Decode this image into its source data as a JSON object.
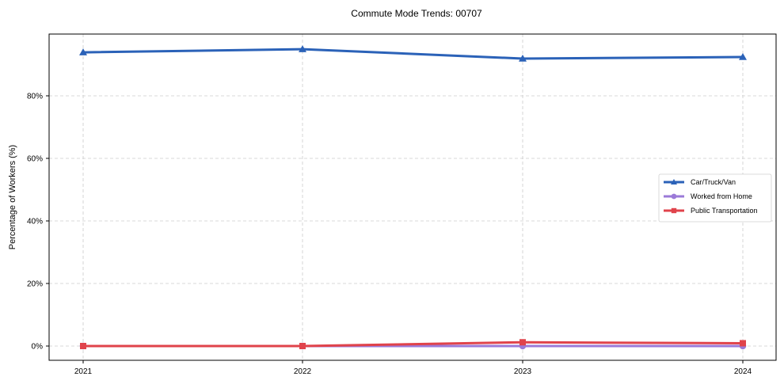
{
  "chart_data": {
    "type": "line",
    "title": "Commute Mode Trends: 00707",
    "xlabel": "",
    "ylabel": "Percentage of Workers (%)",
    "x": [
      "2021",
      "2022",
      "2023",
      "2024"
    ],
    "ylim": [
      -4.5,
      99.5
    ],
    "yticks": [
      0,
      20,
      40,
      60,
      80
    ],
    "ytick_labels": [
      "0%",
      "20%",
      "40%",
      "60%",
      "80%"
    ],
    "grid": true,
    "legend_position": "center right",
    "series": [
      {
        "name": "Car/Truck/Van",
        "color": "#2b62b8",
        "marker": "triangle",
        "values": [
          93.9,
          94.9,
          91.9,
          92.4
        ]
      },
      {
        "name": "Worked from Home",
        "color": "#9b7ad8",
        "marker": "circle",
        "values": [
          0.0,
          0.0,
          0.0,
          0.0
        ]
      },
      {
        "name": "Public Transportation",
        "color": "#e0434b",
        "marker": "square",
        "values": [
          0.0,
          0.0,
          1.2,
          0.9
        ]
      }
    ]
  }
}
